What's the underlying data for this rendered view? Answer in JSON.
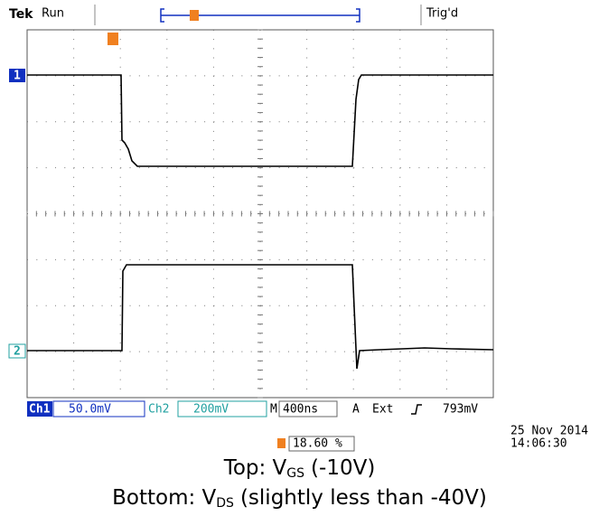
{
  "header": {
    "brand": "Tek",
    "status": "Run",
    "trigger_status": "Trig'd"
  },
  "channel_markers": {
    "ch1": "1",
    "ch2": "2"
  },
  "readout": {
    "ch1_label": "Ch1",
    "ch1_scale": "50.0mV",
    "ch2_label": "Ch2",
    "ch2_scale": "200mV",
    "time_label": "M",
    "time_scale": "400ns",
    "trigger_label": "A",
    "trigger_source": "Ext",
    "trigger_level": "793mV"
  },
  "timestamp": {
    "date": "25 Nov 2014",
    "time": "14:06:30"
  },
  "trigger_position": "18.60 %",
  "caption": {
    "line1": {
      "prefix": "Top: V",
      "subscript": "GS",
      "suffix": "(-10V)"
    },
    "line2": {
      "prefix": "Bottom: V",
      "subscript": "DS",
      "suffix": "(slightly less than -40V)"
    }
  }
}
